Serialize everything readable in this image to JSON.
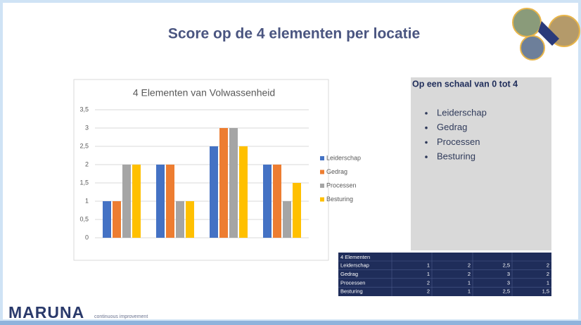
{
  "slide_title": "Score op de 4 elementen per locatie",
  "chart_data": {
    "type": "bar",
    "title": "4 Elementen van Volwassenheid",
    "categories": [
      null,
      null,
      null,
      null
    ],
    "series": [
      {
        "name": "Leiderschap",
        "color": "#4472c4",
        "values": [
          1,
          2,
          2.5,
          2
        ]
      },
      {
        "name": "Gedrag",
        "color": "#ed7d31",
        "values": [
          1,
          2,
          3,
          2
        ]
      },
      {
        "name": "Processen",
        "color": "#a5a5a5",
        "values": [
          2,
          1,
          3,
          1
        ]
      },
      {
        "name": "Besturing",
        "color": "#ffc000",
        "values": [
          2,
          1,
          2.5,
          1.5
        ]
      }
    ],
    "ylim": [
      0,
      3.5
    ],
    "yticks": [
      0,
      {
        "value": 0.5,
        "label": "0,5"
      },
      1,
      {
        "value": 1.5,
        "label": "1,5"
      },
      2,
      {
        "value": 2.5,
        "label": "2,5"
      },
      3,
      {
        "value": 3.5,
        "label": "3,5"
      }
    ],
    "grid": true,
    "legend": "right"
  },
  "info_box": {
    "title": "Op een schaal van 0 tot 4",
    "items": [
      "Leiderschap",
      "Gedrag",
      "Processen",
      "Besturing"
    ]
  },
  "table": {
    "header": "4 Elementen",
    "rows": [
      [
        "Leiderschap",
        "1",
        "2",
        "2,5",
        "2"
      ],
      [
        "Gedrag",
        "1",
        "2",
        "3",
        "2"
      ],
      [
        "Processen",
        "2",
        "1",
        "3",
        "1"
      ],
      [
        "Besturing",
        "2",
        "1",
        "2,5",
        "1,5"
      ]
    ]
  },
  "footer": {
    "logo": "MARUNA",
    "tagline": "continuous improvement"
  }
}
